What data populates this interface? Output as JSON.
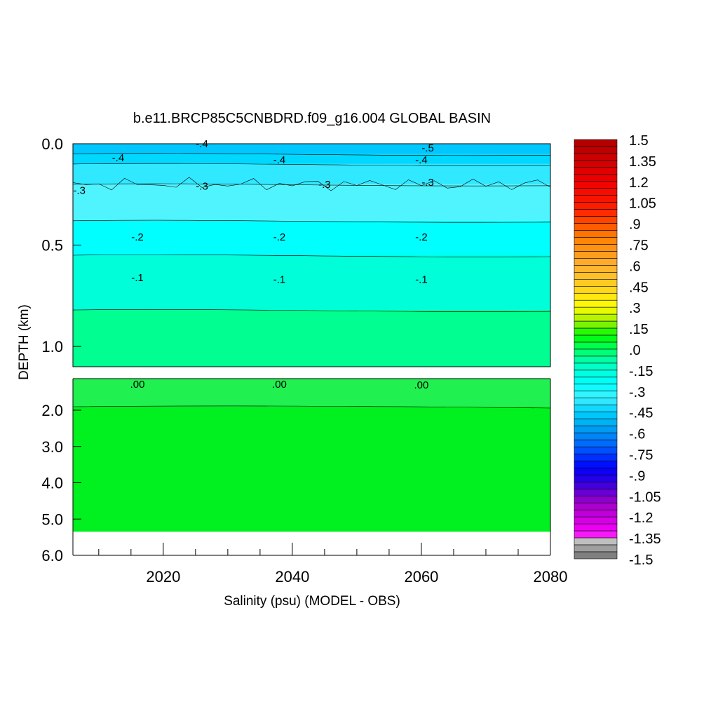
{
  "chart_data": {
    "type": "heatmap",
    "title": "b.e11.BRCP85C5CNBDRD.f09_g16.004 GLOBAL BASIN",
    "xlabel": "Salinity (psu) (MODEL - OBS)",
    "ylabel": "DEPTH (km)",
    "xlim": [
      2006,
      2080
    ],
    "x_ticks": [
      "2020",
      "2040",
      "2060",
      "2080"
    ],
    "upper_panel": {
      "ylim": [
        0.0,
        1.1
      ],
      "y_ticks": [
        "0.0",
        "0.5",
        "1.0"
      ]
    },
    "lower_panel": {
      "ylim": [
        1.1,
        6.0
      ],
      "y_ticks": [
        "2.0",
        "3.0",
        "4.0",
        "5.0",
        "6.0"
      ]
    },
    "bottom_depth_km": 5.35,
    "layers": [
      {
        "depth_top": 0.0,
        "depth_bottom": 0.05,
        "value": -0.5
      },
      {
        "depth_top": 0.05,
        "depth_bottom": 0.1,
        "value": -0.45
      },
      {
        "depth_top": 0.1,
        "depth_bottom": 0.2,
        "value": -0.4
      },
      {
        "depth_top": 0.2,
        "depth_bottom": 0.38,
        "value": -0.3
      },
      {
        "depth_top": 0.38,
        "depth_bottom": 0.55,
        "value": -0.2
      },
      {
        "depth_top": 0.55,
        "depth_bottom": 0.82,
        "value": -0.1
      },
      {
        "depth_top": 0.82,
        "depth_bottom": 1.1,
        "value": -0.05
      },
      {
        "depth_top": 1.1,
        "depth_bottom": 1.9,
        "value": 0.02
      },
      {
        "depth_top": 1.9,
        "depth_bottom": 5.35,
        "value": 0.05
      }
    ],
    "contour_labels": [
      {
        "text": "-.4",
        "x": 2013,
        "depth": 0.07
      },
      {
        "text": "-.4",
        "x": 2026,
        "depth": 0.0
      },
      {
        "text": "-.4",
        "x": 2038,
        "depth": 0.08
      },
      {
        "text": "-.4",
        "x": 2060,
        "depth": 0.08
      },
      {
        "text": "-.5",
        "x": 2061,
        "depth": 0.02
      },
      {
        "text": "-.3",
        "x": 2007,
        "depth": 0.23
      },
      {
        "text": "-.3",
        "x": 2026,
        "depth": 0.21
      },
      {
        "text": "-.3",
        "x": 2045,
        "depth": 0.2
      },
      {
        "text": "-.3",
        "x": 2061,
        "depth": 0.19
      },
      {
        "text": "-.2",
        "x": 2016,
        "depth": 0.46
      },
      {
        "text": "-.2",
        "x": 2038,
        "depth": 0.46
      },
      {
        "text": "-.2",
        "x": 2060,
        "depth": 0.46
      },
      {
        "text": "-.1",
        "x": 2016,
        "depth": 0.66
      },
      {
        "text": "-.1",
        "x": 2038,
        "depth": 0.67
      },
      {
        "text": "-.1",
        "x": 2060,
        "depth": 0.67
      },
      {
        "text": ".00",
        "x": 2016,
        "depth": 1.26
      },
      {
        "text": ".00",
        "x": 2038,
        "depth": 1.26
      },
      {
        "text": ".00",
        "x": 2060,
        "depth": 1.28
      }
    ],
    "colorbar": {
      "range": [
        -1.5,
        1.5
      ],
      "step": 0.05,
      "labels": [
        "1.5",
        "1.35",
        "1.2",
        "1.05",
        ".9",
        ".75",
        ".6",
        ".45",
        ".3",
        ".15",
        ".0",
        "-.15",
        "-.3",
        "-.45",
        "-.6",
        "-.75",
        "-.9",
        "-1.05",
        "-1.2",
        "-1.35",
        "-1.5"
      ]
    }
  }
}
